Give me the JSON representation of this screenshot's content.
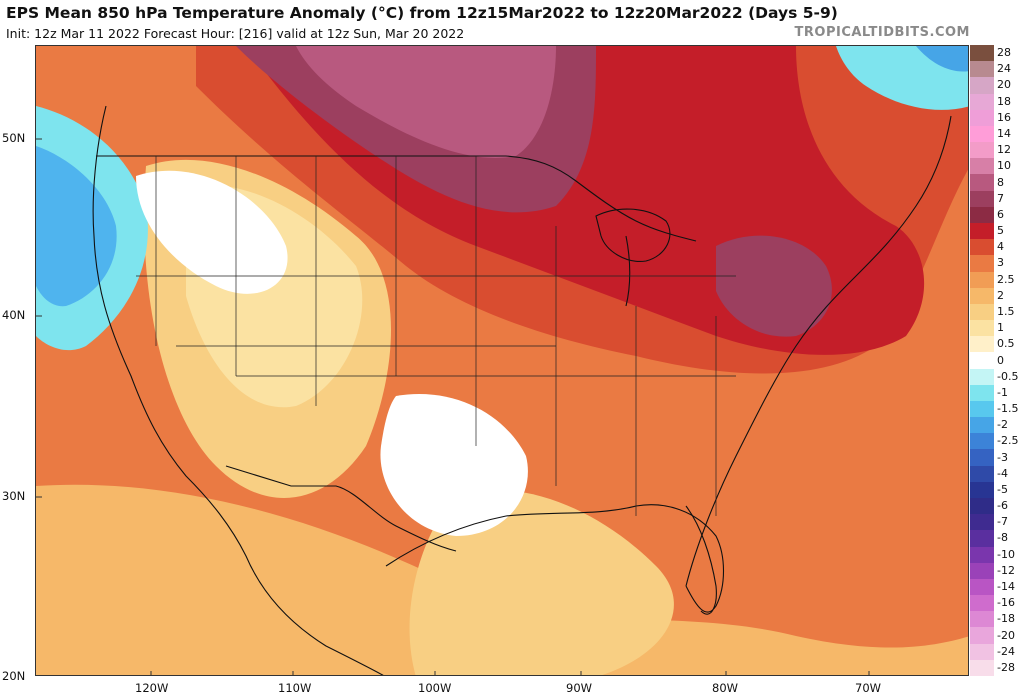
{
  "header": {
    "title": "EPS Mean 850 hPa Temperature Anomaly (°C) from 12z15Mar2022 to 12z20Mar2022 (Days 5-9)",
    "subtitle": "Init: 12z Mar 11 2022   Forecast Hour: [216]   valid at 12z Sun, Mar 20 2022",
    "brand": "TROPICALTIDBITS.COM"
  },
  "map": {
    "lat_labels": [
      "50N",
      "40N",
      "30N",
      "20N"
    ],
    "lon_labels": [
      "120W",
      "110W",
      "100W",
      "90W",
      "80W",
      "70W"
    ],
    "coastline_color": "#111111"
  },
  "legend": {
    "levels": [
      "28",
      "24",
      "20",
      "18",
      "16",
      "14",
      "12",
      "10",
      "8",
      "7",
      "6",
      "5",
      "4",
      "3",
      "2.5",
      "2",
      "1.5",
      "1",
      "0.5",
      "0",
      "-0.5",
      "-1",
      "-1.5",
      "-2",
      "-2.5",
      "-3",
      "-4",
      "-5",
      "-6",
      "-7",
      "-8",
      "-10",
      "-12",
      "-14",
      "-16",
      "-18",
      "-20",
      "-24",
      "-28"
    ],
    "colors": [
      "#7a4f3e",
      "#b88a90",
      "#d6a6c6",
      "#e7a8d6",
      "#ef9ed8",
      "#ff9dd8",
      "#f39cc8",
      "#d77fa7",
      "#b8597f",
      "#9c3f5f",
      "#8c2b44",
      "#c41e29",
      "#d94d30",
      "#ea7a43",
      "#f19d55",
      "#f6b869",
      "#f8cf83",
      "#fbe2a2",
      "#fff0c9",
      "#ffffff",
      "#c4f5f5",
      "#7ee4ee",
      "#58c8ee",
      "#46a5e7",
      "#3c83d8",
      "#3563c2",
      "#2f4aa8",
      "#283593",
      "#2f2c88",
      "#3f2b90",
      "#5a2f9f",
      "#7a36ad",
      "#9a42b8",
      "#b955c4",
      "#cf6ccd",
      "#dd88d4",
      "#e9a6dc",
      "#f1c2e3",
      "#f8ddea"
    ]
  },
  "regions": [
    {
      "name": "west-coast-cool",
      "fill": "#4fb4ee"
    },
    {
      "name": "northwest-neutral",
      "fill": "#ffffff"
    },
    {
      "name": "southern-plains-neutral",
      "fill": "#ffffff"
    },
    {
      "name": "northern-plains-max",
      "fill": "#8c2b44"
    },
    {
      "name": "northeast-max",
      "fill": "#9c3f5f"
    },
    {
      "name": "northeast-arctic-cool",
      "fill": "#7ee4ee"
    }
  ]
}
